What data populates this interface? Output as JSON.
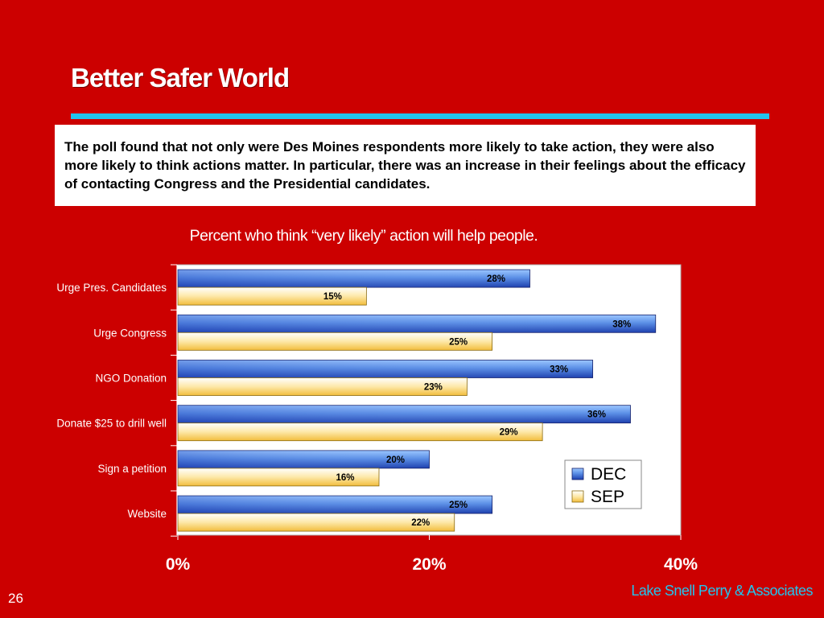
{
  "slide": {
    "title": "Better Safer World",
    "body_text": "The poll found that not only were Des Moines respondents more likely to take action, they were also more likely to think actions matter. In particular, there was an increase in their feelings about the efficacy of contacting Congress and the Presidential candidates.",
    "page_number": "26",
    "footer": "Lake Snell Perry & Associates"
  },
  "colors": {
    "background": "#cc0000",
    "accent_rule": "#22c4ee",
    "dec_bar": "#5b8fe6",
    "sep_bar": "#fde28a"
  },
  "chart_data": {
    "type": "bar",
    "orientation": "horizontal",
    "title": "Percent who think “very likely” action will help people.",
    "categories": [
      "Urge Pres. Candidates",
      "Urge Congress",
      "NGO Donation",
      "Donate $25 to drill well",
      "Sign a petition",
      "Website"
    ],
    "series": [
      {
        "name": "DEC",
        "values": [
          28,
          38,
          33,
          36,
          20,
          25
        ]
      },
      {
        "name": "SEP",
        "values": [
          15,
          25,
          23,
          29,
          16,
          22
        ]
      }
    ],
    "data_labels": [
      [
        "28%",
        "38%",
        "33%",
        "36%",
        "20%",
        "25%"
      ],
      [
        "15%",
        "25%",
        "23%",
        "29%",
        "16%",
        "22%"
      ]
    ],
    "x_ticks": [
      "0%",
      "20%",
      "40%"
    ],
    "xlim": [
      0,
      40
    ],
    "legend": "right",
    "grid": false
  }
}
